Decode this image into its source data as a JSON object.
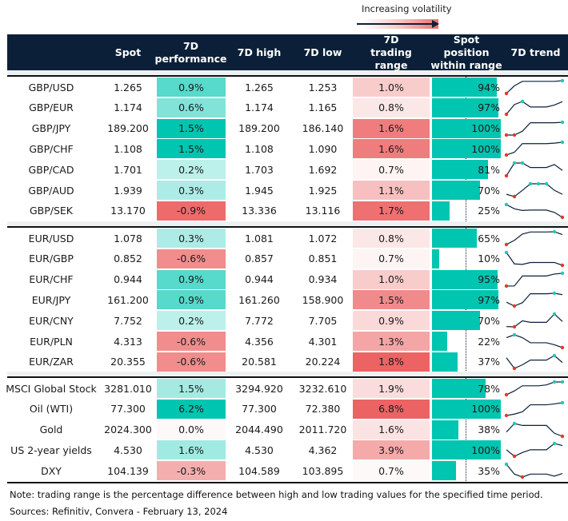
{
  "legend": {
    "title": "Increasing volatility"
  },
  "headers": {
    "spot": "Spot",
    "perf": "7D performance",
    "high": "7D high",
    "low": "7D low",
    "range": "7D trading range",
    "position": "Spot position within range",
    "trend": "7D trend"
  },
  "colors": {
    "header_bg": "#0b2038",
    "positive": "#00c5b0",
    "negative": "#ec6060",
    "range": "#ec6060",
    "bar": "#00c5b0",
    "sparkline": "#0b2038",
    "max_marker": "#1fc9b5",
    "min_marker": "#e8352b"
  },
  "chart_data": {
    "type": "table",
    "sections": [
      {
        "rows": [
          {
            "name": "GBP/USD",
            "spot": "1.265",
            "perf": "0.9%",
            "high": "1.265",
            "low": "1.253",
            "range": "1.0%",
            "position": "94%",
            "trend": [
              0,
              0.6,
              0.95,
              0.95,
              0.95,
              0.95,
              0.95,
              1
            ]
          },
          {
            "name": "GBP/EUR",
            "spot": "1.174",
            "perf": "0.6%",
            "high": "1.174",
            "low": "1.165",
            "range": "0.8%",
            "position": "97%",
            "trend": [
              0,
              0.76,
              1,
              0.57,
              0.57,
              0.57,
              0.72,
              0.99
            ]
          },
          {
            "name": "GBP/JPY",
            "spot": "189.200",
            "perf": "1.5%",
            "high": "189.200",
            "low": "186.140",
            "range": "1.6%",
            "position": "100%",
            "trend": [
              0,
              0,
              0.3,
              0.96,
              0.96,
              0.96,
              0.96,
              1
            ]
          },
          {
            "name": "GBP/CHF",
            "spot": "1.108",
            "perf": "1.5%",
            "high": "1.108",
            "low": "1.090",
            "range": "1.6%",
            "position": "100%",
            "trend": [
              0,
              0.22,
              0.89,
              0.89,
              0.89,
              0.89,
              0.93,
              1
            ]
          },
          {
            "name": "GBP/CAD",
            "spot": "1.701",
            "perf": "0.2%",
            "high": "1.703",
            "low": "1.692",
            "range": "0.7%",
            "position": "81%",
            "trend": [
              0,
              1,
              1,
              0.65,
              0.65,
              0.65,
              0.88,
              0.42
            ]
          },
          {
            "name": "GBP/AUD",
            "spot": "1.939",
            "perf": "0.3%",
            "high": "1.945",
            "low": "1.925",
            "range": "1.1%",
            "position": "70%",
            "trend": [
              0.18,
              0,
              0.49,
              1,
              1,
              1,
              0.49,
              0.18
            ]
          },
          {
            "name": "GBP/SEK",
            "spot": "13.170",
            "perf": "-0.9%",
            "high": "13.336",
            "low": "13.116",
            "range": "1.7%",
            "position": "25%",
            "trend": [
              1,
              0.67,
              0.54,
              0.57,
              0.57,
              0.57,
              0.39,
              0
            ]
          }
        ]
      },
      {
        "rows": [
          {
            "name": "EUR/USD",
            "spot": "1.078",
            "perf": "0.3%",
            "high": "1.081",
            "low": "1.072",
            "range": "0.8%",
            "position": "65%",
            "trend": [
              0,
              0.33,
              0.82,
              0.98,
              0.98,
              0.98,
              1,
              0.78
            ]
          },
          {
            "name": "EUR/GBP",
            "spot": "0.852",
            "perf": "-0.6%",
            "high": "0.857",
            "low": "0.851",
            "range": "0.7%",
            "position": "10%",
            "trend": [
              1,
              0.11,
              0.07,
              0.22,
              0.22,
              0.22,
              0.22,
              0
            ]
          },
          {
            "name": "EUR/CHF",
            "spot": "0.944",
            "perf": "0.9%",
            "high": "0.944",
            "low": "0.934",
            "range": "1.0%",
            "position": "95%",
            "trend": [
              0,
              0.01,
              0.79,
              0.79,
              0.79,
              0.79,
              0.94,
              1
            ]
          },
          {
            "name": "EUR/JPY",
            "spot": "161.200",
            "perf": "0.9%",
            "high": "161.260",
            "low": "158.900",
            "range": "1.5%",
            "position": "97%",
            "trend": [
              0.3,
              0,
              0.26,
              0.96,
              0.96,
              0.96,
              1,
              0.89
            ]
          },
          {
            "name": "EUR/CNY",
            "spot": "7.752",
            "perf": "0.2%",
            "high": "7.772",
            "low": "7.705",
            "range": "0.9%",
            "position": "70%",
            "trend": [
              0.02,
              0,
              0.47,
              0.35,
              0.35,
              0.35,
              1,
              0.42
            ]
          },
          {
            "name": "EUR/PLN",
            "spot": "4.313",
            "perf": "-0.6%",
            "high": "4.356",
            "low": "4.301",
            "range": "1.3%",
            "position": "22%",
            "trend": [
              0.78,
              1,
              0.78,
              0.38,
              0.38,
              0.38,
              0.22,
              0
            ]
          },
          {
            "name": "EUR/ZAR",
            "spot": "20.355",
            "perf": "-0.6%",
            "high": "20.581",
            "low": "20.224",
            "range": "1.8%",
            "position": "37%",
            "trend": [
              0.83,
              0,
              0.28,
              0.65,
              0.65,
              0.65,
              1,
              0.46
            ]
          }
        ]
      },
      {
        "rows": [
          {
            "name": "MSCI Global Stock",
            "spot": "3281.010",
            "perf": "1.5%",
            "high": "3294.920",
            "low": "3232.610",
            "range": "1.9%",
            "position": "78%",
            "trend": [
              0,
              0.3,
              0.7,
              0.7,
              0.7,
              0.77,
              1,
              1
            ]
          },
          {
            "name": "Oil (WTI)",
            "spot": "77.300",
            "perf": "6.2%",
            "high": "77.300",
            "low": "72.380",
            "range": "6.8%",
            "position": "100%",
            "trend": [
              0,
              0.11,
              0.29,
              0.84,
              0.84,
              0.84,
              0.91,
              1
            ]
          },
          {
            "name": "Gold",
            "spot": "2024.300",
            "perf": "0.0%",
            "high": "2044.490",
            "low": "2011.720",
            "range": "1.6%",
            "position": "38%",
            "trend": [
              0.33,
              1,
              0.85,
              0.85,
              0.85,
              0.85,
              0.24,
              0
            ]
          },
          {
            "name": "US 2-year yields",
            "spot": "4.530",
            "perf": "1.6%",
            "high": "4.530",
            "low": "4.362",
            "range": "3.9%",
            "position": "100%",
            "trend": [
              0.51,
              0,
              0.29,
              0.51,
              0.51,
              0.51,
              1,
              0.84
            ]
          },
          {
            "name": "DXY",
            "spot": "104.139",
            "perf": "-0.3%",
            "high": "104.589",
            "low": "103.895",
            "range": "0.7%",
            "position": "35%",
            "trend": [
              1,
              0.23,
              0,
              0.23,
              0.23,
              0.23,
              0.07,
              0.28
            ]
          }
        ]
      }
    ]
  },
  "footer": {
    "note": "Note: trading range is the percentage difference between high and low trading values for the specified time period.",
    "sources": "Sources: Refinitiv, Convera - February 13, 2024"
  }
}
